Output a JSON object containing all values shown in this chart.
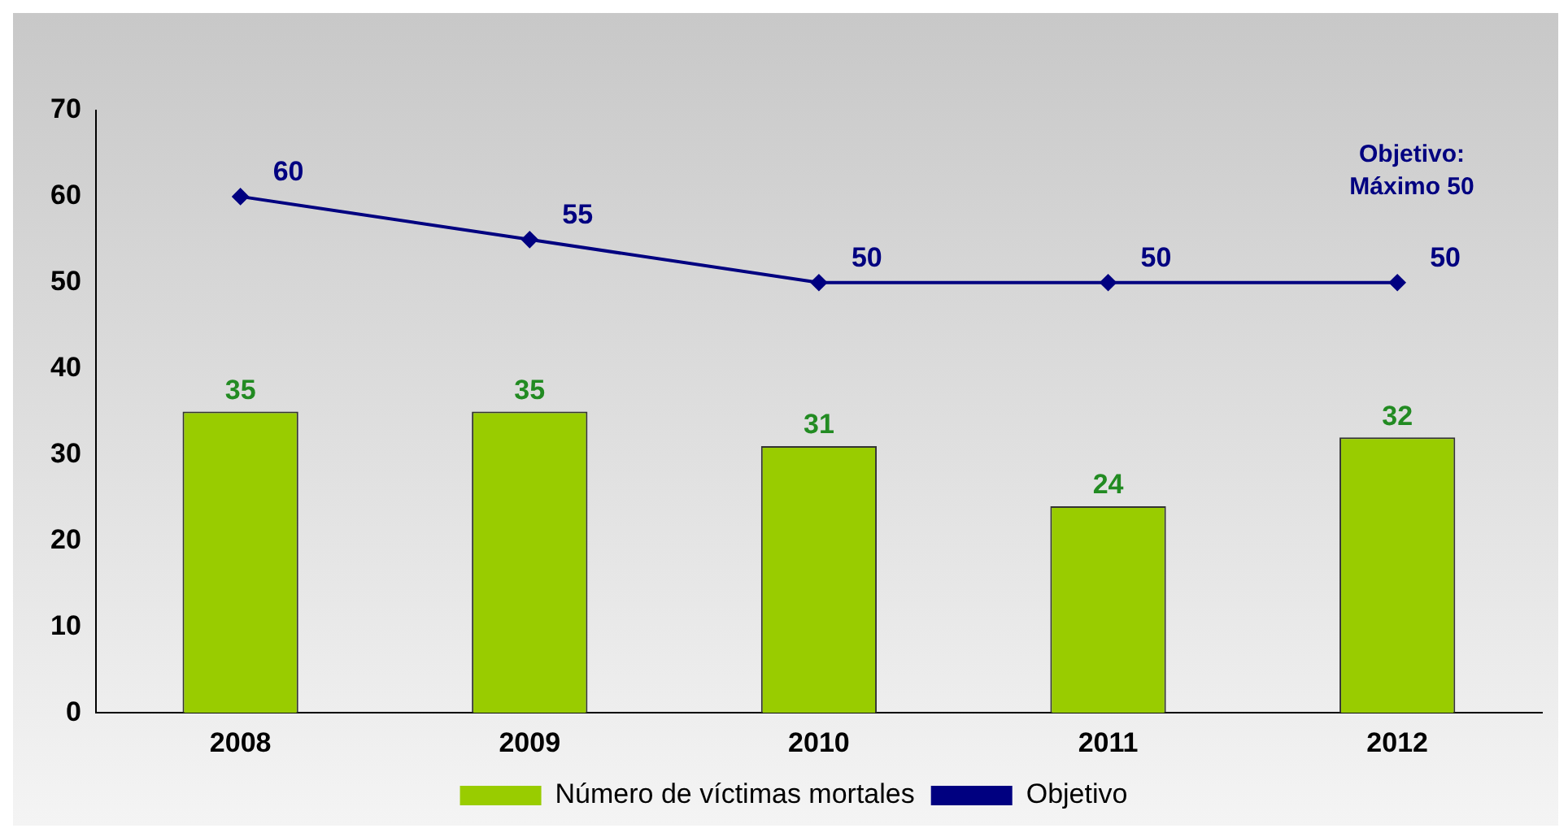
{
  "chart_data": {
    "type": "bar",
    "categories": [
      "2008",
      "2009",
      "2010",
      "2011",
      "2012"
    ],
    "series": [
      {
        "name": "Número de víctimas mortales",
        "color": "#99cc00",
        "values": [
          35,
          35,
          31,
          24,
          32
        ]
      },
      {
        "name": "Objetivo",
        "type": "line",
        "color": "#000080",
        "values": [
          60,
          55,
          50,
          50,
          50
        ]
      }
    ],
    "ylim": [
      0,
      70
    ],
    "yticks": [
      0,
      10,
      20,
      30,
      40,
      50,
      60,
      70
    ],
    "grid": false,
    "legend": "bottom",
    "marker": "diamond",
    "line_style": "solid",
    "data_labels": true,
    "annotations": [
      "Objetivo:\nMáximo 50"
    ]
  }
}
